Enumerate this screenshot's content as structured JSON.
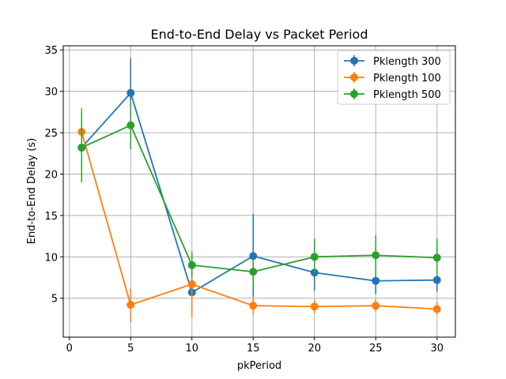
{
  "chart_data": {
    "type": "line",
    "title": "End-to-End Delay vs Packet Period",
    "xlabel": "pkPeriod",
    "ylabel": "End-to-End Delay (s)",
    "xlim": [
      -0.5,
      31.5
    ],
    "ylim": [
      0.3,
      35.5
    ],
    "xticks": [
      0,
      5,
      10,
      15,
      20,
      25,
      30
    ],
    "yticks": [
      5,
      10,
      15,
      20,
      25,
      30,
      35
    ],
    "grid": true,
    "legend_position": "top-right",
    "x": [
      1,
      5,
      10,
      15,
      20,
      25,
      30
    ],
    "series": [
      {
        "name": "Pklength 300",
        "color": "#1f77b4",
        "values": [
          23.2,
          29.8,
          5.7,
          10.1,
          8.1,
          7.1,
          7.2
        ],
        "error_low": [
          19.0,
          25.5,
          4.8,
          5.0,
          5.9,
          5.5,
          5.8
        ],
        "error_high": [
          27.5,
          34.0,
          6.6,
          15.2,
          10.2,
          8.7,
          8.6
        ]
      },
      {
        "name": "Pklength 100",
        "color": "#ff7f0e",
        "values": [
          25.1,
          4.2,
          6.7,
          4.1,
          4.0,
          4.1,
          3.7
        ],
        "error_low": [
          22.0,
          2.1,
          2.7,
          3.0,
          3.2,
          3.4,
          3.0
        ],
        "error_high": [
          28.0,
          6.2,
          10.7,
          5.2,
          4.8,
          4.9,
          4.5
        ]
      },
      {
        "name": "Pklength 500",
        "color": "#2ca02c",
        "values": [
          23.2,
          25.9,
          9.0,
          8.2,
          10.0,
          10.2,
          9.9
        ],
        "error_low": [
          19.0,
          23.0,
          7.5,
          6.6,
          7.9,
          7.8,
          7.6
        ],
        "error_high": [
          27.6,
          28.9,
          10.5,
          9.8,
          12.2,
          12.6,
          12.2
        ]
      }
    ]
  }
}
